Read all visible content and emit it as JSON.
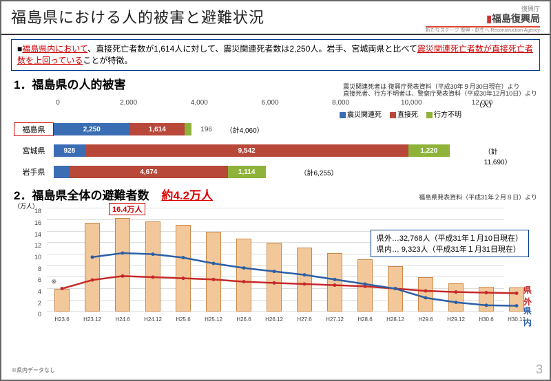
{
  "header": {
    "title": "福島県における人的被害と避難状況",
    "agency_small": "復興庁",
    "agency": "福島復興局",
    "agency_sub": "新たなステージ 復興・創生へ Reconstruction Agency"
  },
  "summary": {
    "lead_red": "福島県内において",
    "text1": "、直接死亡者数が1,614人に対して、震災関連死者数は2,250人。岩手、宮城両県と比べて",
    "red2": "震災関連死亡者数が直接死亡者数を上回っている",
    "text2": "ことが特徴。"
  },
  "chart1": {
    "title": "1．福島県の人的被害",
    "note1": "震災関連死者は 復興庁発表資料（平成30年９月30日現在）より",
    "note2": "直接死者、行方不明者は、警察庁発表資料（平成30年12月10日）より",
    "x_max": 12000,
    "ticks": [
      0,
      2000,
      4000,
      6000,
      8000,
      10000,
      12000
    ],
    "unit": "（人）",
    "legend": [
      {
        "label": "震災関連死",
        "color": "#3b6db5"
      },
      {
        "label": "直接死",
        "color": "#b8483a"
      },
      {
        "label": "行方不明",
        "color": "#8fb23a"
      }
    ],
    "rows": [
      {
        "label": "福島県",
        "boxed": true,
        "segs": [
          {
            "v": 2250,
            "c": "#3b6db5",
            "t": "2,250"
          },
          {
            "v": 1614,
            "c": "#b8483a",
            "t": "1,614"
          },
          {
            "v": 196,
            "c": "#8fb23a",
            "t": "196"
          }
        ],
        "total": "（計4,060）"
      },
      {
        "label": "宮城県",
        "boxed": false,
        "segs": [
          {
            "v": 928,
            "c": "#3b6db5",
            "t": "928"
          },
          {
            "v": 9542,
            "c": "#b8483a",
            "t": "9,542"
          },
          {
            "v": 1220,
            "c": "#8fb23a",
            "t": "1,220"
          }
        ],
        "total": "（計11,690）"
      },
      {
        "label": "岩手県",
        "boxed": false,
        "segs": [
          {
            "v": 467,
            "c": "#3b6db5",
            "t": "467"
          },
          {
            "v": 4674,
            "c": "#b8483a",
            "t": "4,674"
          },
          {
            "v": 1114,
            "c": "#8fb23a",
            "t": "1,114"
          }
        ],
        "total": "（計6,255）"
      }
    ]
  },
  "chart2": {
    "title": "2．福島県全体の避難者数",
    "highlight": "約4.2万人",
    "source": "福島県発表資料（平成31年２月８日）より",
    "peak_label": "16.4万人",
    "info_line1": "県外…32,768人（平成31年１月10日現在）",
    "info_line2": "県内…  9,323人（平成31年１月31日現在）",
    "y_unit": "（万人）",
    "y_max": 18,
    "y_ticks": [
      0,
      2,
      4,
      6,
      8,
      10,
      12,
      14,
      16,
      18
    ],
    "x_labels": [
      "H23.6",
      "H23.12",
      "H24.6",
      "H24.12",
      "H25.6",
      "H25.12",
      "H26.6",
      "H26.12",
      "H27.6",
      "H27.12",
      "H28.6",
      "H28.12",
      "H29.6",
      "H29.12",
      "H30.6",
      "H30.12"
    ],
    "bars": [
      4.0,
      15.5,
      16.4,
      15.8,
      15.2,
      14.0,
      12.8,
      12.0,
      11.2,
      10.2,
      9.2,
      8.0,
      6.0,
      5.0,
      4.4,
      4.2
    ],
    "line_outside": {
      "color": "#c62828",
      "label": "県外",
      "values": [
        4.0,
        5.5,
        6.2,
        6.0,
        5.8,
        5.6,
        5.2,
        5.0,
        4.8,
        4.6,
        4.4,
        4.0,
        3.6,
        3.4,
        3.3,
        3.2
      ]
    },
    "line_inside": {
      "color": "#2c5fa5",
      "label": "県内",
      "values": [
        null,
        9.5,
        10.2,
        10.0,
        9.4,
        8.4,
        7.6,
        7.0,
        6.4,
        5.6,
        4.8,
        4.0,
        2.4,
        1.6,
        1.1,
        1.0
      ]
    },
    "bar_color": "#f2c89a",
    "bar_border": "#cc8a4a",
    "asterisk": "※",
    "foot_note": "※県内データなし"
  },
  "page_number": "3"
}
